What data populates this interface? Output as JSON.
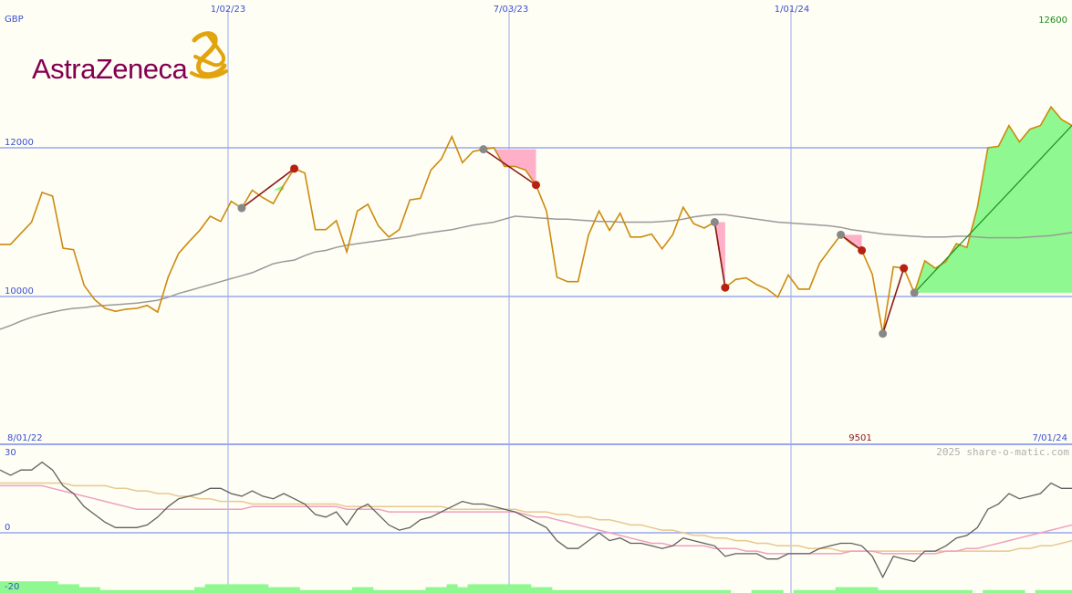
{
  "logo": {
    "text": "AstraZeneca",
    "color": "#830051",
    "mark_color": "#e2a40e"
  },
  "watermark": "2025 share-o-matic.com",
  "colors": {
    "background": "#fefef4",
    "grid": "#9aa8ee",
    "price": "#cc8a10",
    "moving_average": "#9a9a9a",
    "drop_fill": "#ffb0c8",
    "rise_fill": "#90f890",
    "peak_marker": "#888888",
    "trough_marker": "#b82010",
    "drop_line": "#8b1a1a",
    "trend_line": "#1e8c1e",
    "osc_fast": "#606060",
    "osc_slow": "#f0a0c0",
    "osc_slower": "#e8c890",
    "volume": "#90f890",
    "axis_text": "#3b4fd0",
    "high_text": "#1a8a1a",
    "low_text": "#8b1a1a"
  },
  "chart_data": [
    {
      "type": "line",
      "currency_label": "GBP",
      "y_ticks": [
        "12000",
        "10000"
      ],
      "ylim": [
        8000,
        13000
      ],
      "x_top_labels": [
        "1/02/23",
        "7/03/23",
        "1/01/24"
      ],
      "x_start_label": "8/01/22",
      "x_end_label": "7/01/24",
      "high_label": "12600",
      "low_label": "9501",
      "series": [
        {
          "role": "price",
          "values": [
            10700,
            10700,
            10850,
            11000,
            11400,
            11350,
            10650,
            10630,
            10150,
            9960,
            9840,
            9800,
            9830,
            9840,
            9880,
            9790,
            10260,
            10580,
            10740,
            10890,
            11080,
            11010,
            11280,
            11190,
            11430,
            11330,
            11250,
            11500,
            11720,
            11660,
            10900,
            10900,
            11020,
            10600,
            11150,
            11240,
            10950,
            10800,
            10900,
            11300,
            11320,
            11700,
            11850,
            12150,
            11800,
            11950,
            11980,
            12000,
            11750,
            11750,
            11700,
            11500,
            11150,
            10260,
            10200,
            10200,
            10830,
            11150,
            10890,
            11120,
            10800,
            10800,
            10840,
            10640,
            10830,
            11200,
            10980,
            10920,
            11000,
            10120,
            10230,
            10250,
            10160,
            10100,
            9990,
            10290,
            10100,
            10100,
            10450,
            10640,
            10830,
            10710,
            10620,
            10300,
            9500,
            10400,
            10380,
            10050,
            10480,
            10380,
            10470,
            10710,
            10660,
            11200,
            12000,
            12020,
            12300,
            12080,
            12250,
            12300,
            12550,
            12380,
            12300
          ]
        },
        {
          "role": "moving_average",
          "values": [
            9560,
            9610,
            9670,
            9720,
            9760,
            9790,
            9820,
            9840,
            9850,
            9870,
            9880,
            9890,
            9900,
            9910,
            9930,
            9950,
            9990,
            10040,
            10080,
            10120,
            10160,
            10200,
            10240,
            10280,
            10320,
            10380,
            10440,
            10470,
            10490,
            10550,
            10600,
            10620,
            10660,
            10690,
            10710,
            10730,
            10750,
            10770,
            10790,
            10810,
            10840,
            10860,
            10880,
            10900,
            10930,
            10960,
            10980,
            11000,
            11040,
            11080,
            11070,
            11060,
            11050,
            11040,
            11040,
            11030,
            11020,
            11010,
            11010,
            11000,
            11000,
            11000,
            11000,
            11010,
            11020,
            11040,
            11070,
            11090,
            11100,
            11100,
            11080,
            11060,
            11040,
            11020,
            11000,
            10990,
            10980,
            10970,
            10960,
            10950,
            10930,
            10900,
            10880,
            10860,
            10840,
            10830,
            10820,
            10810,
            10800,
            10800,
            10800,
            10810,
            10810,
            10800,
            10790,
            10790,
            10790,
            10790,
            10800,
            10810,
            10820,
            10840,
            10860
          ]
        }
      ],
      "drops": [
        {
          "from": 23,
          "to": 28
        },
        {
          "from": 46,
          "to": 51
        },
        {
          "from": 68,
          "to": 69
        },
        {
          "from": 80,
          "to": 82
        },
        {
          "from": 84,
          "to": 86
        }
      ],
      "rises": [
        {
          "from": 24,
          "to": 27
        },
        {
          "from": 87,
          "to": 102
        }
      ],
      "peaks": [
        23,
        46,
        68,
        80,
        84,
        87
      ],
      "troughs": [
        28,
        51,
        69,
        82,
        86
      ],
      "trend_line": {
        "from": 87,
        "to": 102,
        "end_value": 12300
      }
    },
    {
      "type": "line",
      "y_ticks": [
        "30",
        "0",
        "-20"
      ],
      "ylim": [
        -22,
        32
      ],
      "series": [
        {
          "role": "osc_fast",
          "values": [
            24,
            22,
            24,
            24,
            27,
            24,
            18,
            15,
            10,
            7,
            4,
            2,
            2,
            2,
            3,
            6,
            10,
            13,
            14,
            15,
            17,
            17,
            15,
            14,
            16,
            14,
            13,
            15,
            13,
            11,
            7,
            6,
            8,
            3,
            9,
            11,
            7,
            3,
            1,
            2,
            5,
            6,
            8,
            10,
            12,
            11,
            11,
            10,
            9,
            8,
            6,
            4,
            2,
            -3,
            -6,
            -6,
            -3,
            0,
            -3,
            -2,
            -4,
            -4,
            -5,
            -6,
            -5,
            -2,
            -3,
            -4,
            -5,
            -9,
            -8,
            -8,
            -8,
            -10,
            -10,
            -8,
            -8,
            -8,
            -6,
            -5,
            -4,
            -4,
            -5,
            -9,
            -17,
            -9,
            -10,
            -11,
            -7,
            -7,
            -5,
            -2,
            -1,
            2,
            9,
            11,
            15,
            13,
            14,
            15,
            19,
            17,
            17
          ]
        },
        {
          "role": "osc_slow",
          "values": [
            18,
            18,
            18,
            18,
            18,
            17,
            16,
            15,
            14,
            13,
            12,
            11,
            10,
            9,
            9,
            9,
            9,
            9,
            9,
            9,
            9,
            9,
            9,
            9,
            10,
            10,
            10,
            10,
            10,
            10,
            10,
            10,
            10,
            9,
            9,
            9,
            9,
            8,
            8,
            8,
            8,
            8,
            8,
            8,
            8,
            8,
            8,
            8,
            8,
            8,
            7,
            6,
            6,
            5,
            4,
            3,
            2,
            1,
            0,
            -1,
            -2,
            -3,
            -4,
            -4,
            -5,
            -5,
            -5,
            -5,
            -6,
            -6,
            -6,
            -7,
            -7,
            -8,
            -8,
            -8,
            -8,
            -8,
            -8,
            -8,
            -8,
            -7,
            -7,
            -7,
            -8,
            -8,
            -8,
            -8,
            -8,
            -8,
            -7,
            -7,
            -6,
            -6,
            -5,
            -4,
            -3,
            -2,
            -1,
            0,
            1,
            2,
            3
          ]
        },
        {
          "role": "osc_slower",
          "values": [
            19,
            19,
            19,
            19,
            19,
            19,
            19,
            18,
            18,
            18,
            18,
            17,
            17,
            16,
            16,
            15,
            15,
            14,
            14,
            13,
            13,
            12,
            12,
            12,
            11,
            11,
            11,
            11,
            11,
            11,
            11,
            11,
            11,
            10,
            10,
            10,
            10,
            10,
            10,
            10,
            10,
            10,
            10,
            9,
            9,
            9,
            9,
            9,
            9,
            9,
            8,
            8,
            8,
            7,
            7,
            6,
            6,
            5,
            5,
            4,
            3,
            3,
            2,
            1,
            1,
            0,
            -1,
            -1,
            -2,
            -2,
            -3,
            -3,
            -4,
            -4,
            -5,
            -5,
            -5,
            -6,
            -6,
            -6,
            -7,
            -7,
            -7,
            -7,
            -7,
            -7,
            -7,
            -7,
            -7,
            -7,
            -7,
            -7,
            -7,
            -7,
            -7,
            -7,
            -7,
            -6,
            -6,
            -5,
            -5,
            -4,
            -3
          ]
        }
      ],
      "volume": [
        4,
        4,
        4,
        4,
        4,
        4,
        3,
        3,
        2,
        2,
        1,
        1,
        1,
        1,
        1,
        1,
        1,
        1,
        1,
        2,
        3,
        3,
        3,
        3,
        3,
        3,
        2,
        2,
        2,
        1,
        1,
        1,
        1,
        1,
        2,
        2,
        1,
        1,
        1,
        1,
        1,
        2,
        2,
        3,
        2,
        3,
        3,
        3,
        3,
        3,
        3,
        2,
        2,
        1,
        1,
        1,
        1,
        1,
        1,
        1,
        1,
        1,
        1,
        1,
        1,
        1,
        1,
        1,
        1,
        1,
        0,
        0,
        1,
        1,
        1,
        0,
        1,
        1,
        1,
        1,
        2,
        2,
        2,
        2,
        1,
        1,
        1,
        1,
        1,
        1,
        1,
        1,
        1,
        0,
        1,
        1,
        1,
        1,
        0,
        1,
        1,
        1,
        1
      ]
    }
  ]
}
